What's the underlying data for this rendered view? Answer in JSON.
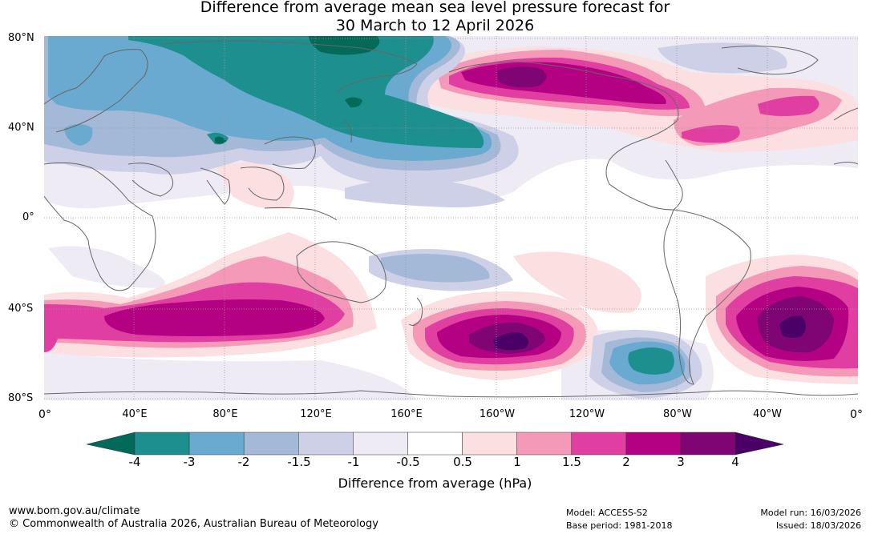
{
  "title": {
    "line1": "Difference from average mean sea level pressure forecast for",
    "line2": "30 March to 12 April 2026"
  },
  "lat_labels": [
    "80°N",
    "40°N",
    "0°",
    "40°S",
    "80°S"
  ],
  "lon_labels": [
    "0°",
    "40°E",
    "80°E",
    "120°E",
    "160°E",
    "160°W",
    "120°W",
    "80°W",
    "40°W",
    "0°"
  ],
  "colorbar": {
    "ticks": [
      "-4",
      "-3",
      "-2",
      "-1.5",
      "-1",
      "-0.5",
      "0.5",
      "1",
      "1.5",
      "2",
      "3",
      "4"
    ],
    "colors": [
      "#1e8f8f",
      "#6aaad0",
      "#a3b9d7",
      "#cdd0e6",
      "#efebf4",
      "#ffffff",
      "#fcdfe1",
      "#f49ab8",
      "#e03ea0",
      "#b40083",
      "#7f0474"
    ],
    "low_color": "#036a5a",
    "high_color": "#4b0068",
    "title": "Difference from average (hPa)"
  },
  "footer": {
    "url": "www.bom.gov.au/climate",
    "copyright": "© Commonwealth of Australia 2026, Australian Bureau of Meteorology",
    "model": "Model: ACCESS-S2",
    "base_period": "Base period: 1981-2018",
    "model_run": "Model run: 16/03/2026",
    "issued": "Issued: 18/03/2026"
  }
}
